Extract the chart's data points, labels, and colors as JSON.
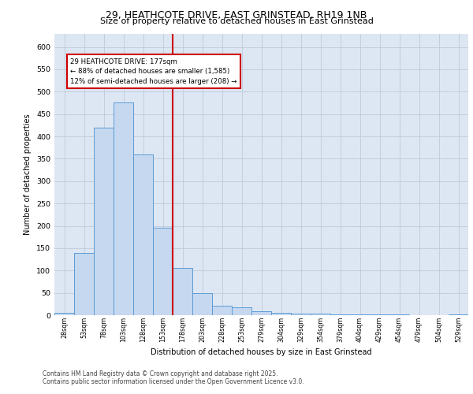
{
  "title_line1": "29, HEATHCOTE DRIVE, EAST GRINSTEAD, RH19 1NB",
  "title_line2": "Size of property relative to detached houses in East Grinstead",
  "xlabel": "Distribution of detached houses by size in East Grinstead",
  "ylabel": "Number of detached properties",
  "footer_line1": "Contains HM Land Registry data © Crown copyright and database right 2025.",
  "footer_line2": "Contains public sector information licensed under the Open Government Licence v3.0.",
  "bin_labels": [
    "28sqm",
    "53sqm",
    "78sqm",
    "103sqm",
    "128sqm",
    "153sqm",
    "178sqm",
    "203sqm",
    "228sqm",
    "253sqm",
    "279sqm",
    "304sqm",
    "329sqm",
    "354sqm",
    "379sqm",
    "404sqm",
    "429sqm",
    "454sqm",
    "479sqm",
    "504sqm",
    "529sqm"
  ],
  "bar_values": [
    5,
    140,
    420,
    475,
    360,
    195,
    105,
    50,
    22,
    18,
    8,
    5,
    4,
    3,
    2,
    1,
    1,
    1,
    0,
    0,
    1
  ],
  "bar_color": "#c5d8ef",
  "bar_edge_color": "#5b9bd5",
  "vline_x_idx": 5.5,
  "vline_color": "#cc0000",
  "annotation_box_color": "#cc0000",
  "property_label": "29 HEATHCOTE DRIVE: 177sqm",
  "annotation_line1": "← 88% of detached houses are smaller (1,585)",
  "annotation_line2": "12% of semi-detached houses are larger (208) →",
  "background_color": "#dde7f3",
  "ylim": [
    0,
    630
  ],
  "yticks": [
    0,
    50,
    100,
    150,
    200,
    250,
    300,
    350,
    400,
    450,
    500,
    550,
    600
  ]
}
